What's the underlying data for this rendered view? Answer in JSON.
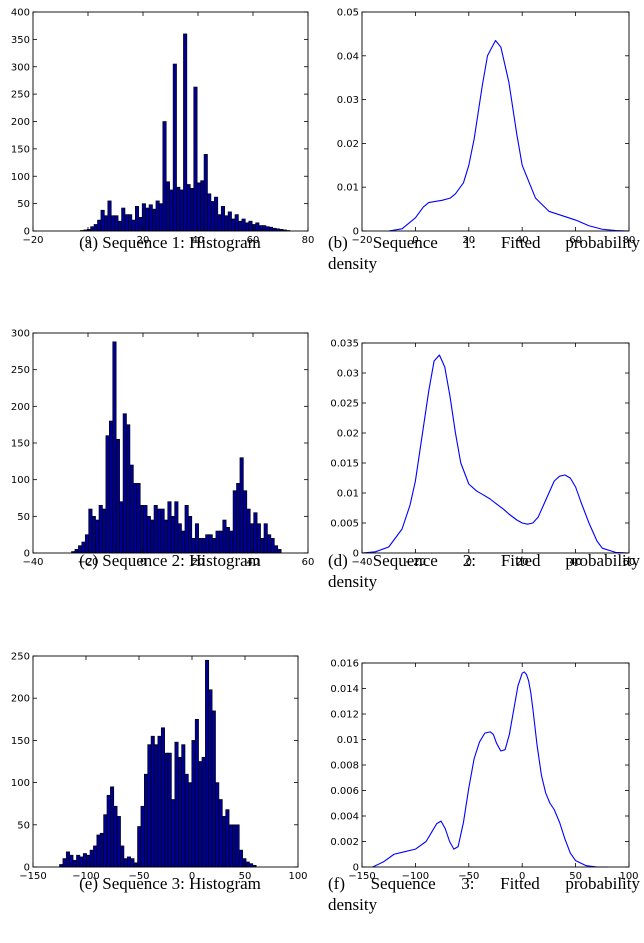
{
  "panels": [
    {
      "caption": "(a) Sequence 1: Histogram",
      "chart_data": {
        "type": "bar",
        "title": "",
        "xlabel": "",
        "ylabel": "",
        "xlim": [
          -20,
          80
        ],
        "ylim": [
          0,
          400
        ],
        "xticks": [
          -20,
          0,
          20,
          40,
          60,
          80
        ],
        "yticks": [
          0,
          50,
          100,
          150,
          200,
          250,
          300,
          350,
          400
        ],
        "bar_color": "#00008f",
        "bin_start": -2.8,
        "bin_width": 1.25,
        "values": [
          1,
          2,
          3,
          8,
          12,
          20,
          38,
          28,
          55,
          28,
          28,
          18,
          42,
          30,
          30,
          20,
          45,
          25,
          50,
          42,
          48,
          40,
          55,
          50,
          200,
          90,
          75,
          305,
          80,
          75,
          360,
          85,
          78,
          263,
          88,
          92,
          140,
          68,
          54,
          62,
          30,
          45,
          28,
          35,
          22,
          30,
          18,
          22,
          15,
          18,
          12,
          15,
          10,
          10,
          8,
          7,
          5,
          4,
          3,
          2,
          1
        ]
      }
    },
    {
      "caption_main": "(b) Sequence 1: Fitted probability",
      "caption_cont": "density",
      "chart_data": {
        "type": "line",
        "title": "",
        "xlabel": "",
        "ylabel": "",
        "xlim": [
          -20,
          80
        ],
        "ylim": [
          0,
          0.05
        ],
        "xticks": [
          -20,
          0,
          20,
          40,
          60,
          80
        ],
        "yticks": [
          0,
          0.01,
          0.02,
          0.03,
          0.04,
          0.05
        ],
        "line_color": "#0000ff",
        "x": [
          -10,
          -5,
          0,
          3,
          5,
          8,
          10,
          13,
          15,
          18,
          20,
          22,
          25,
          27,
          30,
          32,
          35,
          38,
          40,
          45,
          50,
          55,
          60,
          65,
          70,
          75,
          80
        ],
        "y": [
          0,
          0.0005,
          0.003,
          0.0055,
          0.0065,
          0.0068,
          0.007,
          0.0075,
          0.0085,
          0.011,
          0.015,
          0.021,
          0.033,
          0.04,
          0.0435,
          0.042,
          0.034,
          0.022,
          0.015,
          0.0075,
          0.0045,
          0.0035,
          0.0025,
          0.0012,
          0.0004,
          0.0001,
          0
        ]
      }
    },
    {
      "caption": "(c) Sequence 2: Histogram",
      "chart_data": {
        "type": "bar",
        "title": "",
        "xlabel": "",
        "ylabel": "",
        "xlim": [
          -40,
          60
        ],
        "ylim": [
          0,
          300
        ],
        "xticks": [
          -40,
          -20,
          0,
          20,
          40,
          60
        ],
        "yticks": [
          0,
          50,
          100,
          150,
          200,
          250,
          300
        ],
        "bar_color": "#00008f",
        "bin_start": -26,
        "bin_width": 1.25,
        "values": [
          2,
          5,
          10,
          15,
          25,
          60,
          50,
          45,
          65,
          60,
          160,
          180,
          288,
          155,
          70,
          190,
          175,
          120,
          95,
          95,
          65,
          65,
          50,
          45,
          65,
          60,
          60,
          45,
          70,
          50,
          70,
          40,
          30,
          65,
          50,
          20,
          40,
          20,
          20,
          25,
          25,
          20,
          30,
          30,
          45,
          35,
          30,
          85,
          95,
          130,
          85,
          60,
          40,
          55,
          40,
          20,
          40,
          25,
          20,
          10,
          5
        ]
      }
    },
    {
      "caption_main": "(d) Sequence 2: Fitted probability",
      "caption_cont": "density",
      "chart_data": {
        "type": "line",
        "title": "",
        "xlabel": "",
        "ylabel": "",
        "xlim": [
          -40,
          60
        ],
        "ylim": [
          0,
          0.035
        ],
        "xticks": [
          -40,
          -20,
          0,
          20,
          40,
          60
        ],
        "yticks": [
          0,
          0.005,
          0.01,
          0.015,
          0.02,
          0.025,
          0.03,
          0.035
        ],
        "line_color": "#0000ff",
        "x": [
          -40,
          -35,
          -30,
          -25,
          -22,
          -20,
          -18,
          -15,
          -13,
          -11,
          -9,
          -7,
          -5,
          -3,
          0,
          3,
          5,
          8,
          10,
          13,
          15,
          18,
          20,
          22,
          24,
          26,
          28,
          30,
          32,
          34,
          36,
          38,
          40,
          42,
          45,
          48,
          50,
          55,
          60
        ],
        "y": [
          0,
          0.0002,
          0.001,
          0.004,
          0.008,
          0.012,
          0.018,
          0.027,
          0.032,
          0.033,
          0.031,
          0.026,
          0.02,
          0.015,
          0.0115,
          0.0103,
          0.0098,
          0.009,
          0.0083,
          0.0073,
          0.0065,
          0.0055,
          0.005,
          0.0048,
          0.005,
          0.006,
          0.008,
          0.01,
          0.012,
          0.0128,
          0.013,
          0.0125,
          0.011,
          0.0085,
          0.005,
          0.002,
          0.0008,
          0.0001,
          0
        ]
      }
    },
    {
      "caption": "(e) Sequence 3: Histogram",
      "chart_data": {
        "type": "bar",
        "title": "",
        "xlabel": "",
        "ylabel": "",
        "xlim": [
          -150,
          100
        ],
        "ylim": [
          0,
          250
        ],
        "xticks": [
          -150,
          -100,
          -50,
          0,
          50,
          100
        ],
        "yticks": [
          0,
          50,
          100,
          150,
          200,
          250
        ],
        "bar_color": "#00008f",
        "bin_start": -125,
        "bin_width": 3.2,
        "values": [
          3,
          10,
          18,
          14,
          8,
          14,
          12,
          16,
          14,
          20,
          25,
          38,
          40,
          62,
          85,
          95,
          72,
          60,
          25,
          10,
          12,
          10,
          5,
          48,
          72,
          110,
          145,
          155,
          145,
          155,
          165,
          135,
          135,
          80,
          148,
          130,
          145,
          110,
          100,
          150,
          175,
          125,
          130,
          245,
          210,
          185,
          100,
          80,
          60,
          68,
          50,
          50,
          50,
          20,
          10,
          6,
          4,
          2
        ]
      }
    },
    {
      "caption_main": "(f) Sequence 3: Fitted probability",
      "caption_cont": "density",
      "chart_data": {
        "type": "line",
        "title": "",
        "xlabel": "",
        "ylabel": "",
        "xlim": [
          -150,
          100
        ],
        "ylim": [
          0,
          0.016
        ],
        "xticks": [
          -150,
          -100,
          -50,
          0,
          50,
          100
        ],
        "yticks": [
          0,
          0.002,
          0.004,
          0.006,
          0.008,
          0.01,
          0.012,
          0.014,
          0.016
        ],
        "line_color": "#0000ff",
        "x": [
          -140,
          -130,
          -120,
          -110,
          -100,
          -90,
          -85,
          -80,
          -76,
          -72,
          -68,
          -64,
          -60,
          -55,
          -50,
          -45,
          -40,
          -35,
          -30,
          -27,
          -24,
          -20,
          -16,
          -12,
          -8,
          -4,
          0,
          2,
          4,
          6,
          8,
          10,
          14,
          18,
          22,
          26,
          30,
          35,
          40,
          45,
          50,
          60,
          70,
          80
        ],
        "y": [
          0,
          0.0004,
          0.001,
          0.0012,
          0.0014,
          0.002,
          0.0027,
          0.0034,
          0.0036,
          0.003,
          0.002,
          0.0014,
          0.0016,
          0.0035,
          0.0062,
          0.0085,
          0.0098,
          0.0105,
          0.0106,
          0.0104,
          0.0097,
          0.0091,
          0.0092,
          0.0104,
          0.0123,
          0.0142,
          0.0152,
          0.0153,
          0.0151,
          0.0146,
          0.0137,
          0.0124,
          0.0095,
          0.0072,
          0.0058,
          0.005,
          0.0045,
          0.0035,
          0.0022,
          0.0011,
          0.0005,
          0.0001,
          0,
          0
        ]
      }
    }
  ]
}
